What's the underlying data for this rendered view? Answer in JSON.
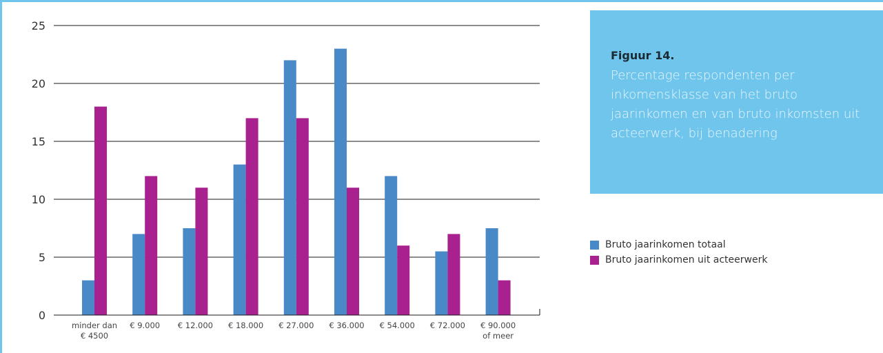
{
  "caption": {
    "title": "Figuur 14.",
    "text": "Percentage respondenten per inkomensklasse van het bruto jaarinkomen en van bruto inkomsten uit acteerwerk, bij benadering"
  },
  "colors": {
    "series_totaal": "#4a89c8",
    "series_acteerwerk": "#a8218e",
    "caption_bg": "#70c5ec"
  },
  "chart_data": {
    "type": "bar",
    "title": "",
    "xlabel": "",
    "ylabel": "",
    "ylim": [
      0,
      25
    ],
    "yticks": [
      "0",
      "5",
      "10",
      "15",
      "20",
      "25"
    ],
    "grid": true,
    "legend_position": "right",
    "categories": [
      [
        "minder dan",
        "€ 4500"
      ],
      [
        "€ 9.000"
      ],
      [
        "€ 12.000"
      ],
      [
        "€ 18.000"
      ],
      [
        "€ 27.000"
      ],
      [
        "€ 36.000"
      ],
      [
        "€ 54.000"
      ],
      [
        "€ 72.000"
      ],
      [
        "€ 90.000",
        "of meer"
      ]
    ],
    "series": [
      {
        "name": "Bruto jaarinkomen totaal",
        "color": "#4a89c8",
        "values": [
          3,
          7,
          7.5,
          13,
          22,
          23,
          12,
          5.5,
          7.5
        ]
      },
      {
        "name": "Bruto jaarinkomen uit acteerwerk",
        "color": "#a8218e",
        "values": [
          18,
          12,
          11,
          17,
          17,
          11,
          6,
          7,
          3
        ]
      }
    ]
  }
}
